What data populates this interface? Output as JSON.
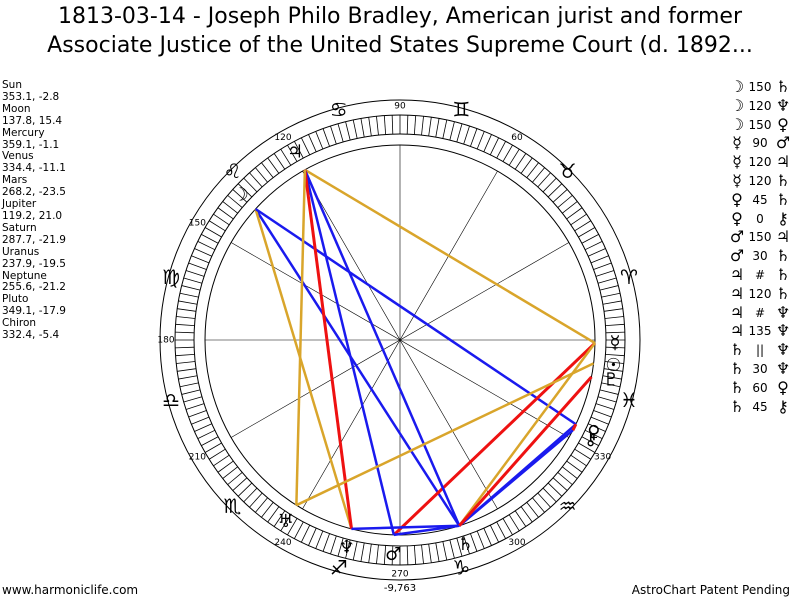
{
  "title": {
    "line1": "1813-03-14 - Joseph Philo Bradley, American jurist and former",
    "line2": "Associate Justice of the United States Supreme Court (d. 1892..."
  },
  "planets": [
    {
      "name": "Sun",
      "coords": "353.1, -2.8"
    },
    {
      "name": "Moon",
      "coords": "137.8, 15.4"
    },
    {
      "name": "Mercury",
      "coords": "359.1, -1.1"
    },
    {
      "name": "Venus",
      "coords": "334.4, -11.1"
    },
    {
      "name": "Mars",
      "coords": "268.2, -23.5"
    },
    {
      "name": "Jupiter",
      "coords": "119.2, 21.0"
    },
    {
      "name": "Saturn",
      "coords": "287.7, -21.9"
    },
    {
      "name": "Uranus",
      "coords": "237.9, -19.5"
    },
    {
      "name": "Neptune",
      "coords": "255.6, -21.2"
    },
    {
      "name": "Pluto",
      "coords": "349.1, -17.9"
    },
    {
      "name": "Chiron",
      "coords": "332.4, -5.4"
    }
  ],
  "aspects": [
    {
      "p1": "☽",
      "angle": "150",
      "p2": "♄"
    },
    {
      "p1": "☽",
      "angle": "120",
      "p2": "♆"
    },
    {
      "p1": "☽",
      "angle": "150",
      "p2": "♀"
    },
    {
      "p1": "☿",
      "angle": "90",
      "p2": "♂"
    },
    {
      "p1": "☿",
      "angle": "120",
      "p2": "♃"
    },
    {
      "p1": "☿",
      "angle": "120",
      "p2": "♄"
    },
    {
      "p1": "♀",
      "angle": "45",
      "p2": "♄"
    },
    {
      "p1": "♀",
      "angle": "0",
      "p2": "⚷"
    },
    {
      "p1": "♂",
      "angle": "150",
      "p2": "♃"
    },
    {
      "p1": "♂",
      "angle": "30",
      "p2": "♄"
    },
    {
      "p1": "♃",
      "angle": "#",
      "p2": "♄"
    },
    {
      "p1": "♃",
      "angle": "120",
      "p2": "♄"
    },
    {
      "p1": "♃",
      "angle": "#",
      "p2": "♆"
    },
    {
      "p1": "♃",
      "angle": "135",
      "p2": "♆"
    },
    {
      "p1": "♄",
      "angle": "||",
      "p2": "♆"
    },
    {
      "p1": "♄",
      "angle": "30",
      "p2": "♆"
    },
    {
      "p1": "♄",
      "angle": "60",
      "p2": "♀"
    },
    {
      "p1": "♄",
      "angle": "45",
      "p2": "⚷"
    }
  ],
  "wheel": {
    "degree_labels": [
      "90",
      "60",
      "120",
      "150",
      "180",
      "210",
      "240",
      "270",
      "300",
      "330"
    ],
    "label_270_note": "-9,763",
    "signs": [
      {
        "name": "aries",
        "glyph": "♈",
        "lon": 15
      },
      {
        "name": "taurus",
        "glyph": "♉",
        "lon": 45
      },
      {
        "name": "gemini",
        "glyph": "♊",
        "lon": 75
      },
      {
        "name": "cancer",
        "glyph": "♋",
        "lon": 105
      },
      {
        "name": "leo",
        "glyph": "♌",
        "lon": 135
      },
      {
        "name": "virgo",
        "glyph": "♍",
        "lon": 165
      },
      {
        "name": "libra",
        "glyph": "♎",
        "lon": 195
      },
      {
        "name": "scorpio",
        "glyph": "♏",
        "lon": 225
      },
      {
        "name": "sagittarius",
        "glyph": "♐",
        "lon": 255
      },
      {
        "name": "capricorn",
        "glyph": "♑",
        "lon": 285
      },
      {
        "name": "aquarius",
        "glyph": "♒",
        "lon": 315
      },
      {
        "name": "pisces",
        "glyph": "♓",
        "lon": 345
      }
    ],
    "bodies": [
      {
        "id": "sun",
        "glyph": "☉",
        "lon": 353.1
      },
      {
        "id": "moon",
        "glyph": "☽",
        "lon": 137.8
      },
      {
        "id": "mercury",
        "glyph": "☿",
        "lon": 359.1
      },
      {
        "id": "venus",
        "glyph": "♀",
        "lon": 334.4
      },
      {
        "id": "mars",
        "glyph": "♂",
        "lon": 268.2
      },
      {
        "id": "jupiter",
        "glyph": "♃",
        "lon": 119.2
      },
      {
        "id": "saturn",
        "glyph": "♄",
        "lon": 287.7
      },
      {
        "id": "uranus",
        "glyph": "♅",
        "lon": 237.9
      },
      {
        "id": "neptune",
        "glyph": "♆",
        "lon": 255.6
      },
      {
        "id": "pluto",
        "glyph": "♇",
        "lon": 349.1
      },
      {
        "id": "chiron",
        "glyph": "⚷",
        "lon": 332.4
      }
    ],
    "aspect_lines": [
      {
        "a": "moon",
        "b": "saturn",
        "color": "#1a1aee",
        "style": "solid"
      },
      {
        "a": "moon",
        "b": "neptune",
        "color": "#d9a52b",
        "style": "solid"
      },
      {
        "a": "moon",
        "b": "venus",
        "color": "#1a1aee",
        "style": "solid"
      },
      {
        "a": "mercury",
        "b": "mars",
        "color": "#ee1111",
        "style": "solid"
      },
      {
        "a": "mercury",
        "b": "jupiter",
        "color": "#d9a52b",
        "style": "solid"
      },
      {
        "a": "mercury",
        "b": "saturn",
        "color": "#d9a52b",
        "style": "solid"
      },
      {
        "a": "venus",
        "b": "saturn",
        "color": "#1a1aee",
        "style": "solid"
      },
      {
        "a": "venus",
        "b": "chiron",
        "color": "#ee1111",
        "style": "solid"
      },
      {
        "a": "mars",
        "b": "jupiter",
        "color": "#1a1aee",
        "style": "solid"
      },
      {
        "a": "mars",
        "b": "saturn",
        "color": "#1a1aee",
        "style": "solid"
      },
      {
        "a": "jupiter",
        "b": "saturn",
        "color": "#ee1111",
        "style": "dotted"
      },
      {
        "a": "jupiter",
        "b": "saturn",
        "color": "#1a1aee",
        "style": "solid"
      },
      {
        "a": "jupiter",
        "b": "neptune",
        "color": "#ee1111",
        "style": "solid"
      },
      {
        "a": "jupiter",
        "b": "uranus",
        "color": "#d9a52b",
        "style": "solid"
      },
      {
        "a": "saturn",
        "b": "neptune",
        "color": "#1a1aee",
        "style": "solid"
      },
      {
        "a": "saturn",
        "b": "chiron",
        "color": "#1a1aee",
        "style": "solid"
      },
      {
        "a": "uranus",
        "b": "sun",
        "color": "#d9a52b",
        "style": "solid"
      },
      {
        "a": "pluto",
        "b": "saturn",
        "color": "#ee1111",
        "style": "solid"
      }
    ]
  },
  "footer": {
    "left": "www.harmoniclife.com",
    "right": "AstroChart Patent Pending"
  }
}
